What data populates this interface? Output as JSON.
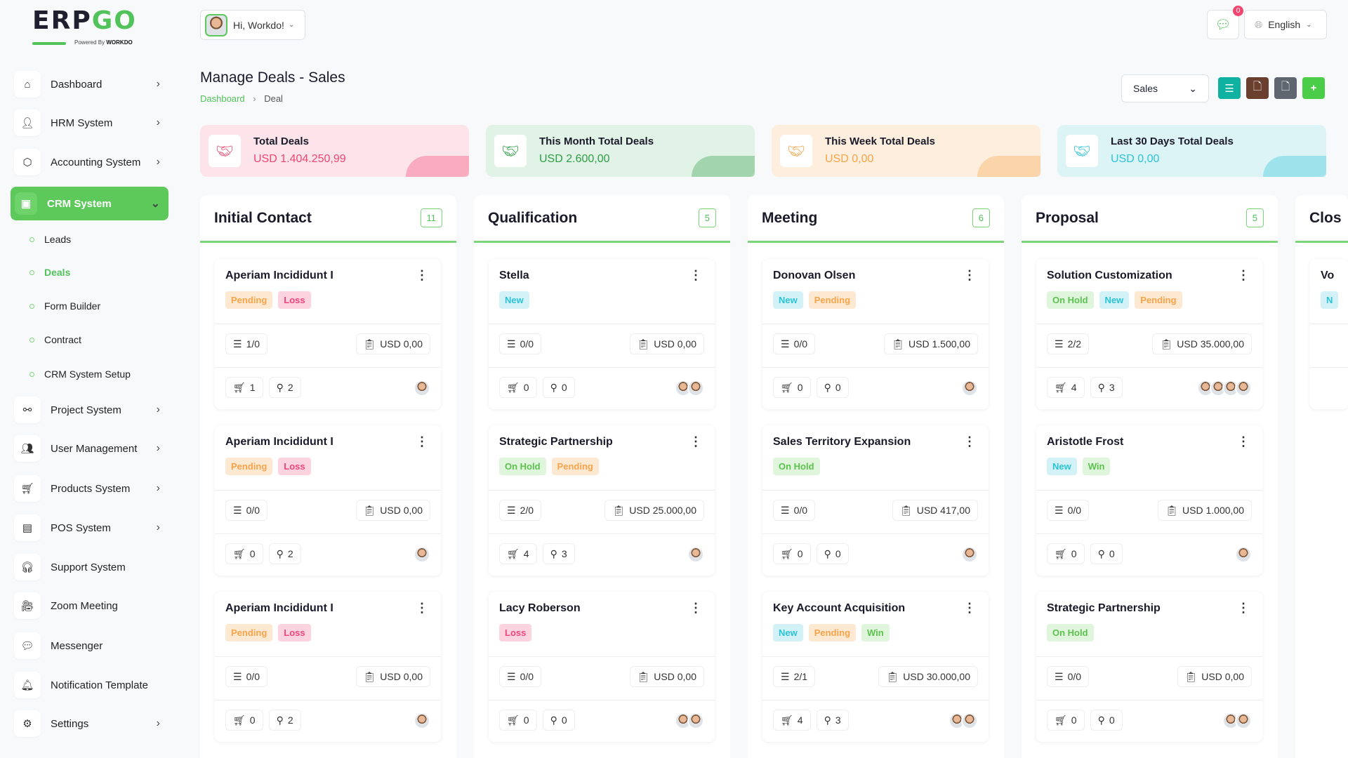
{
  "logo": {
    "text_dark": "ERP",
    "text_green": "GO",
    "powered": "Powered By",
    "brand": "WORKDO"
  },
  "header": {
    "greeting": "Hi, Workdo!",
    "notification_count": "0",
    "language": "English"
  },
  "sidebar": {
    "items": [
      {
        "label": "Dashboard",
        "icon": "home-icon",
        "chevron": true
      },
      {
        "label": "HRM System",
        "icon": "user-icon",
        "chevron": true
      },
      {
        "label": "Accounting System",
        "icon": "box-icon",
        "chevron": true
      },
      {
        "label": "CRM System",
        "icon": "crm-icon",
        "chevron": true,
        "active": true
      },
      {
        "label": "Project System",
        "icon": "share-icon",
        "chevron": true
      },
      {
        "label": "User Management",
        "icon": "users-icon",
        "chevron": true
      },
      {
        "label": "Products System",
        "icon": "cart-icon",
        "chevron": true
      },
      {
        "label": "POS System",
        "icon": "pos-icon",
        "chevron": true
      },
      {
        "label": "Support System",
        "icon": "headset-icon",
        "chevron": false
      },
      {
        "label": "Zoom Meeting",
        "icon": "user-video-icon",
        "chevron": false
      },
      {
        "label": "Messenger",
        "icon": "chat-icon",
        "chevron": false
      },
      {
        "label": "Notification Template",
        "icon": "notification-icon",
        "chevron": false
      },
      {
        "label": "Settings",
        "icon": "gear-icon",
        "chevron": true
      }
    ],
    "sub_items": [
      {
        "label": "Leads"
      },
      {
        "label": "Deals",
        "active": true
      },
      {
        "label": "Form Builder"
      },
      {
        "label": "Contract"
      },
      {
        "label": "CRM System Setup"
      }
    ]
  },
  "page": {
    "title": "Manage Deals - Sales",
    "breadcrumb": [
      "Dashboard",
      "Deal"
    ],
    "pipeline_select": "Sales"
  },
  "colors": {
    "accent": "#5cc95a",
    "list_btn": "#0fb1a0",
    "import_btn": "#6b3f2e",
    "export_btn": "#5f6670",
    "add_btn": "#4ccd4a"
  },
  "stats": [
    {
      "label": "Total Deals",
      "value": "USD 1.404.250,99",
      "color": "#f0466f",
      "bg": "#fde4ea"
    },
    {
      "label": "This Month Total Deals",
      "value": "USD 2.600,00",
      "color": "#2e9d45",
      "bg": "#e1f3e6"
    },
    {
      "label": "This Week Total Deals",
      "value": "USD 0,00",
      "color": "#f7a44a",
      "bg": "#fdeedd"
    },
    {
      "label": "Last 30 Days Total Deals",
      "value": "USD 0,00",
      "color": "#2bc3d8",
      "bg": "#dcf4f6"
    }
  ],
  "tag_styles": {
    "Pending": {
      "bg": "#fde8d2",
      "fg": "#f7a44a"
    },
    "Loss": {
      "bg": "#fdd3df",
      "fg": "#f0467a"
    },
    "New": {
      "bg": "#d3f2f7",
      "fg": "#2bc3d8"
    },
    "On Hold": {
      "bg": "#dff5dc",
      "fg": "#5cc24f"
    },
    "Win": {
      "bg": "#dff5dc",
      "fg": "#5cc24f"
    }
  },
  "columns": [
    {
      "title": "Initial Contact",
      "count": "11",
      "cards": [
        {
          "name": "Aperiam Incididunt I",
          "tags": [
            "Pending",
            "Loss"
          ],
          "tasks": "1/0",
          "price": "USD 0,00",
          "products": "1",
          "sources": "2",
          "avatars": 1
        },
        {
          "name": "Aperiam Incididunt I",
          "tags": [
            "Pending",
            "Loss"
          ],
          "tasks": "0/0",
          "price": "USD 0,00",
          "products": "0",
          "sources": "2",
          "avatars": 1
        },
        {
          "name": "Aperiam Incididunt I",
          "tags": [
            "Pending",
            "Loss"
          ],
          "tasks": "0/0",
          "price": "USD 0,00",
          "products": "0",
          "sources": "2",
          "avatars": 1
        }
      ]
    },
    {
      "title": "Qualification",
      "count": "5",
      "cards": [
        {
          "name": "Stella",
          "tags": [
            "New"
          ],
          "tasks": "0/0",
          "price": "USD 0,00",
          "products": "0",
          "sources": "0",
          "avatars": 2
        },
        {
          "name": "Strategic Partnership",
          "tags": [
            "On Hold",
            "Pending"
          ],
          "tasks": "2/0",
          "price": "USD 25.000,00",
          "products": "4",
          "sources": "3",
          "avatars": 1
        },
        {
          "name": "Lacy Roberson",
          "tags": [
            "Loss"
          ],
          "tasks": "0/0",
          "price": "USD 0,00",
          "products": "0",
          "sources": "0",
          "avatars": 2
        }
      ]
    },
    {
      "title": "Meeting",
      "count": "6",
      "cards": [
        {
          "name": "Donovan Olsen",
          "tags": [
            "New",
            "Pending"
          ],
          "tasks": "0/0",
          "price": "USD 1.500,00",
          "products": "0",
          "sources": "0",
          "avatars": 1
        },
        {
          "name": "Sales Territory Expansion",
          "tags": [
            "On Hold"
          ],
          "tasks": "0/0",
          "price": "USD 417,00",
          "products": "0",
          "sources": "0",
          "avatars": 1
        },
        {
          "name": "Key Account Acquisition",
          "tags": [
            "New",
            "Pending",
            "Win"
          ],
          "tasks": "2/1",
          "price": "USD 30.000,00",
          "products": "4",
          "sources": "3",
          "avatars": 2
        }
      ]
    },
    {
      "title": "Proposal",
      "count": "5",
      "cards": [
        {
          "name": "Solution Customization",
          "tags": [
            "On Hold",
            "New",
            "Pending"
          ],
          "tasks": "2/2",
          "price": "USD 35.000,00",
          "products": "4",
          "sources": "3",
          "avatars": 4
        },
        {
          "name": "Aristotle Frost",
          "tags": [
            "New",
            "Win"
          ],
          "tasks": "0/0",
          "price": "USD 1.000,00",
          "products": "0",
          "sources": "0",
          "avatars": 1
        },
        {
          "name": "Strategic Partnership",
          "tags": [
            "On Hold"
          ],
          "tasks": "0/0",
          "price": "USD 0,00",
          "products": "0",
          "sources": "0",
          "avatars": 2
        }
      ]
    },
    {
      "title": "Clos",
      "count": "",
      "cards": [
        {
          "name": "Vo",
          "tags": [
            "N"
          ],
          "tasks": "",
          "price": "",
          "products": "",
          "sources": "",
          "avatars": 0
        }
      ]
    }
  ]
}
